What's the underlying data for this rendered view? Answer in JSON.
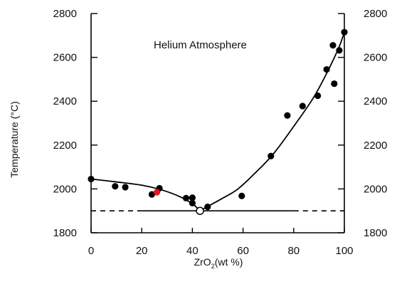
{
  "chart_data": {
    "type": "scatter",
    "title": "",
    "annotation": "Helium Atmosphere",
    "xlabel": {
      "main": "ZrO",
      "sub": "2",
      "rest": "(wt %)"
    },
    "ylabel": "Temperature (°C)",
    "xlim": [
      0,
      100
    ],
    "ylim": [
      1800,
      2800
    ],
    "xticks": [
      0,
      20,
      40,
      60,
      80,
      100
    ],
    "yticks": [
      1800,
      2000,
      2200,
      2400,
      2600,
      2800
    ],
    "right_axis_ticks": [
      1800,
      2000,
      2200,
      2400,
      2600,
      2800
    ],
    "grid": false,
    "colors": {
      "points": "#000000",
      "highlight": "#e8141c",
      "eutectic_fill": "#ffffff",
      "curve": "#000000"
    },
    "points": [
      {
        "x": 0,
        "y": 2045
      },
      {
        "x": 9.5,
        "y": 2012
      },
      {
        "x": 13.5,
        "y": 2008
      },
      {
        "x": 24,
        "y": 1975
      },
      {
        "x": 27,
        "y": 2003
      },
      {
        "x": 37.5,
        "y": 1958
      },
      {
        "x": 40,
        "y": 1960
      },
      {
        "x": 40,
        "y": 1935
      },
      {
        "x": 46,
        "y": 1918
      },
      {
        "x": 59.5,
        "y": 1968
      },
      {
        "x": 71,
        "y": 2150
      },
      {
        "x": 77.5,
        "y": 2335
      },
      {
        "x": 83.5,
        "y": 2378
      },
      {
        "x": 89.5,
        "y": 2425
      },
      {
        "x": 93,
        "y": 2545
      },
      {
        "x": 95.5,
        "y": 2655
      },
      {
        "x": 96,
        "y": 2480
      },
      {
        "x": 98,
        "y": 2632
      },
      {
        "x": 100,
        "y": 2715
      }
    ],
    "highlight_point": {
      "x": 26,
      "y": 1985
    },
    "eutectic_point": {
      "x": 43,
      "y": 1900
    },
    "liquidus_curve": [
      {
        "x": 0,
        "y": 2045
      },
      {
        "x": 10,
        "y": 2032
      },
      {
        "x": 20,
        "y": 2017
      },
      {
        "x": 28,
        "y": 1995
      },
      {
        "x": 35,
        "y": 1965
      },
      {
        "x": 40,
        "y": 1933
      },
      {
        "x": 43,
        "y": 1905
      },
      {
        "x": 46,
        "y": 1920
      },
      {
        "x": 52,
        "y": 1958
      },
      {
        "x": 58,
        "y": 2000
      },
      {
        "x": 65,
        "y": 2075
      },
      {
        "x": 72,
        "y": 2160
      },
      {
        "x": 80,
        "y": 2285
      },
      {
        "x": 88,
        "y": 2420
      },
      {
        "x": 94,
        "y": 2550
      },
      {
        "x": 98,
        "y": 2650
      },
      {
        "x": 100,
        "y": 2715
      }
    ],
    "eutectic_line": {
      "y": 1900,
      "solid_from": 20,
      "solid_to": 80
    }
  }
}
